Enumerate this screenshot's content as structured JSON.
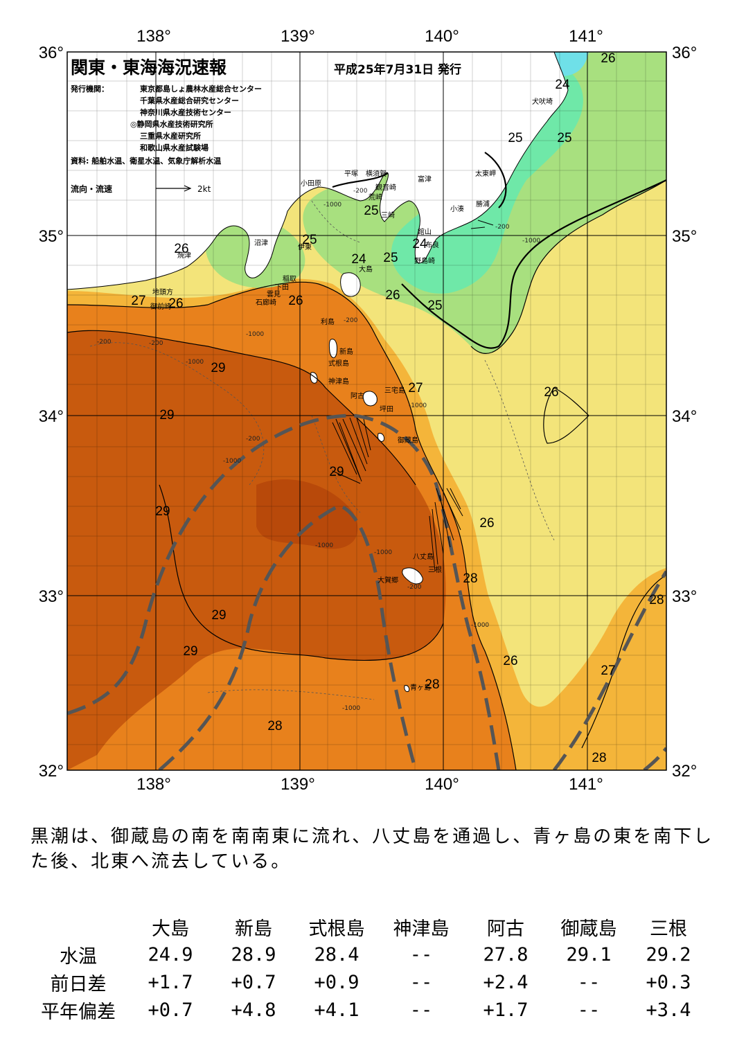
{
  "header": {
    "title": "関東・東海海況速報",
    "date": "平成25年7月31日 発行",
    "publisher_label": "発行機関：",
    "publishers": [
      "東京都島しょ農林水産総合センター",
      "千葉県水産総合研究センター",
      "神奈川県水産技術センター",
      "◎静岡県水産技術研究所",
      "三重県水産研究所",
      "和歌山県水産試験場"
    ],
    "source": "資料: 船舶水温、衛星水温、気象庁解析水温",
    "current_legend": {
      "label": "流向・流速",
      "scale": "2kt"
    }
  },
  "axes": {
    "lon_labels": [
      "138°",
      "139°",
      "140°",
      "141°"
    ],
    "lat_labels": [
      "36°",
      "35°",
      "34°",
      "33°",
      "32°"
    ]
  },
  "isotherm_labels": [
    "26",
    "24",
    "25",
    "25",
    "25",
    "24",
    "25",
    "25",
    "24",
    "26",
    "27",
    "26",
    "26",
    "26",
    "25",
    "29",
    "29",
    "27",
    "26",
    "29",
    "29",
    "26",
    "28",
    "29",
    "28",
    "29",
    "26",
    "27",
    "28",
    "28"
  ],
  "places": [
    "犬吠埼",
    "太東岬",
    "勝浦",
    "小湊",
    "富津",
    "館山",
    "布良",
    "野島崎",
    "観音崎",
    "横須賀",
    "平塚",
    "荒崎",
    "三崎",
    "小田原",
    "沼津",
    "伊東",
    "焼津",
    "稲取",
    "下田",
    "雲見",
    "石廊崎",
    "地頭方",
    "御前崎",
    "大島",
    "利島",
    "新島",
    "式根島",
    "神津島",
    "三宅島",
    "阿古",
    "坪田",
    "御蔵島",
    "八丈島",
    "三根",
    "大賀郷",
    "青ヶ島"
  ],
  "depth_labels": [
    "-200",
    "-1000"
  ],
  "colors": {
    "sea_29": "#c85a0e",
    "sea_28": "#e8811c",
    "sea_27": "#f4b53a",
    "sea_26": "#f3e47a",
    "sea_25": "#a8e07f",
    "sea_24": "#6fe8a8",
    "sea_23": "#6fe0e8",
    "land": "#ffffff",
    "kuroshio_axis": "#555555"
  },
  "summary": "黒潮は、御蔵島の南を南南東に流れ、八丈島を通過し、青ヶ島の東を南下した後、北東へ流去している。",
  "observations": {
    "stations": [
      "大島",
      "新島",
      "式根島",
      "神津島",
      "阿古",
      "御蔵島",
      "三根"
    ],
    "rows": [
      {
        "label": "水温",
        "values": [
          "24.9",
          "28.9",
          "28.4",
          "--",
          "27.8",
          "29.1",
          "29.2"
        ]
      },
      {
        "label": "前日差",
        "values": [
          "+1.7",
          "+0.7",
          "+0.9",
          "--",
          "+2.4",
          "--",
          "+0.3"
        ]
      },
      {
        "label": "平年偏差",
        "values": [
          "+0.7",
          "+4.8",
          "+4.1",
          "--",
          "+1.7",
          "--",
          "+3.4"
        ]
      }
    ]
  }
}
